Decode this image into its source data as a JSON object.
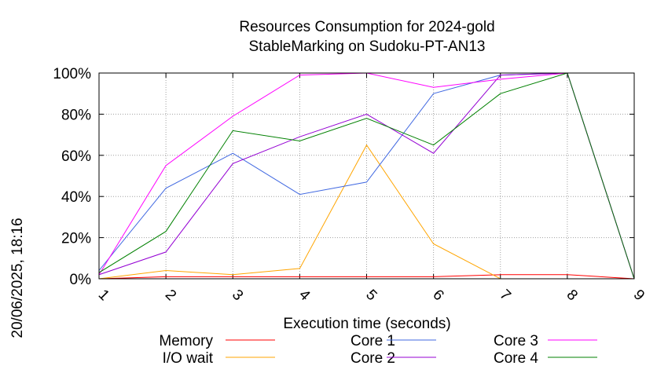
{
  "chart_data": {
    "type": "line",
    "title": "Resources Consumption for 2024-gold",
    "subtitle": "StableMarking on Sudoku-PT-AN13",
    "xlabel": "Execution time (seconds)",
    "ylabel": "",
    "side_label": "20/06/2025, 18:16",
    "x": [
      1,
      2,
      3,
      4,
      5,
      6,
      7,
      8,
      9
    ],
    "x_tick_labels": [
      "1",
      "2",
      "3",
      "4",
      "5",
      "6",
      "7",
      "8",
      "9"
    ],
    "xlim": [
      1,
      9
    ],
    "ylim": [
      0,
      100
    ],
    "y_tick_labels": [
      "0%",
      "20%",
      "40%",
      "60%",
      "80%",
      "100%"
    ],
    "grid": true,
    "legend_position": "bottom",
    "series": [
      {
        "name": "Memory",
        "color": "#ff0000",
        "values": [
          0,
          1,
          1,
          1,
          1,
          1,
          2,
          2,
          0
        ]
      },
      {
        "name": "I/O wait",
        "color": "#ffa500",
        "values": [
          0,
          4,
          2,
          5,
          65,
          17,
          0,
          0,
          0
        ]
      },
      {
        "name": "Core 1",
        "color": "#4169e1",
        "values": [
          4,
          44,
          61,
          41,
          47,
          90,
          99,
          100,
          0
        ]
      },
      {
        "name": "Core 2",
        "color": "#9400d3",
        "values": [
          2,
          13,
          56,
          69,
          80,
          61,
          99,
          100,
          0
        ]
      },
      {
        "name": "Core 3",
        "color": "#ff00ff",
        "values": [
          2,
          55,
          79,
          99,
          100,
          93,
          97,
          100,
          0
        ]
      },
      {
        "name": "Core 4",
        "color": "#008000",
        "values": [
          3,
          23,
          72,
          67,
          78,
          65,
          90,
          100,
          0
        ]
      }
    ]
  }
}
